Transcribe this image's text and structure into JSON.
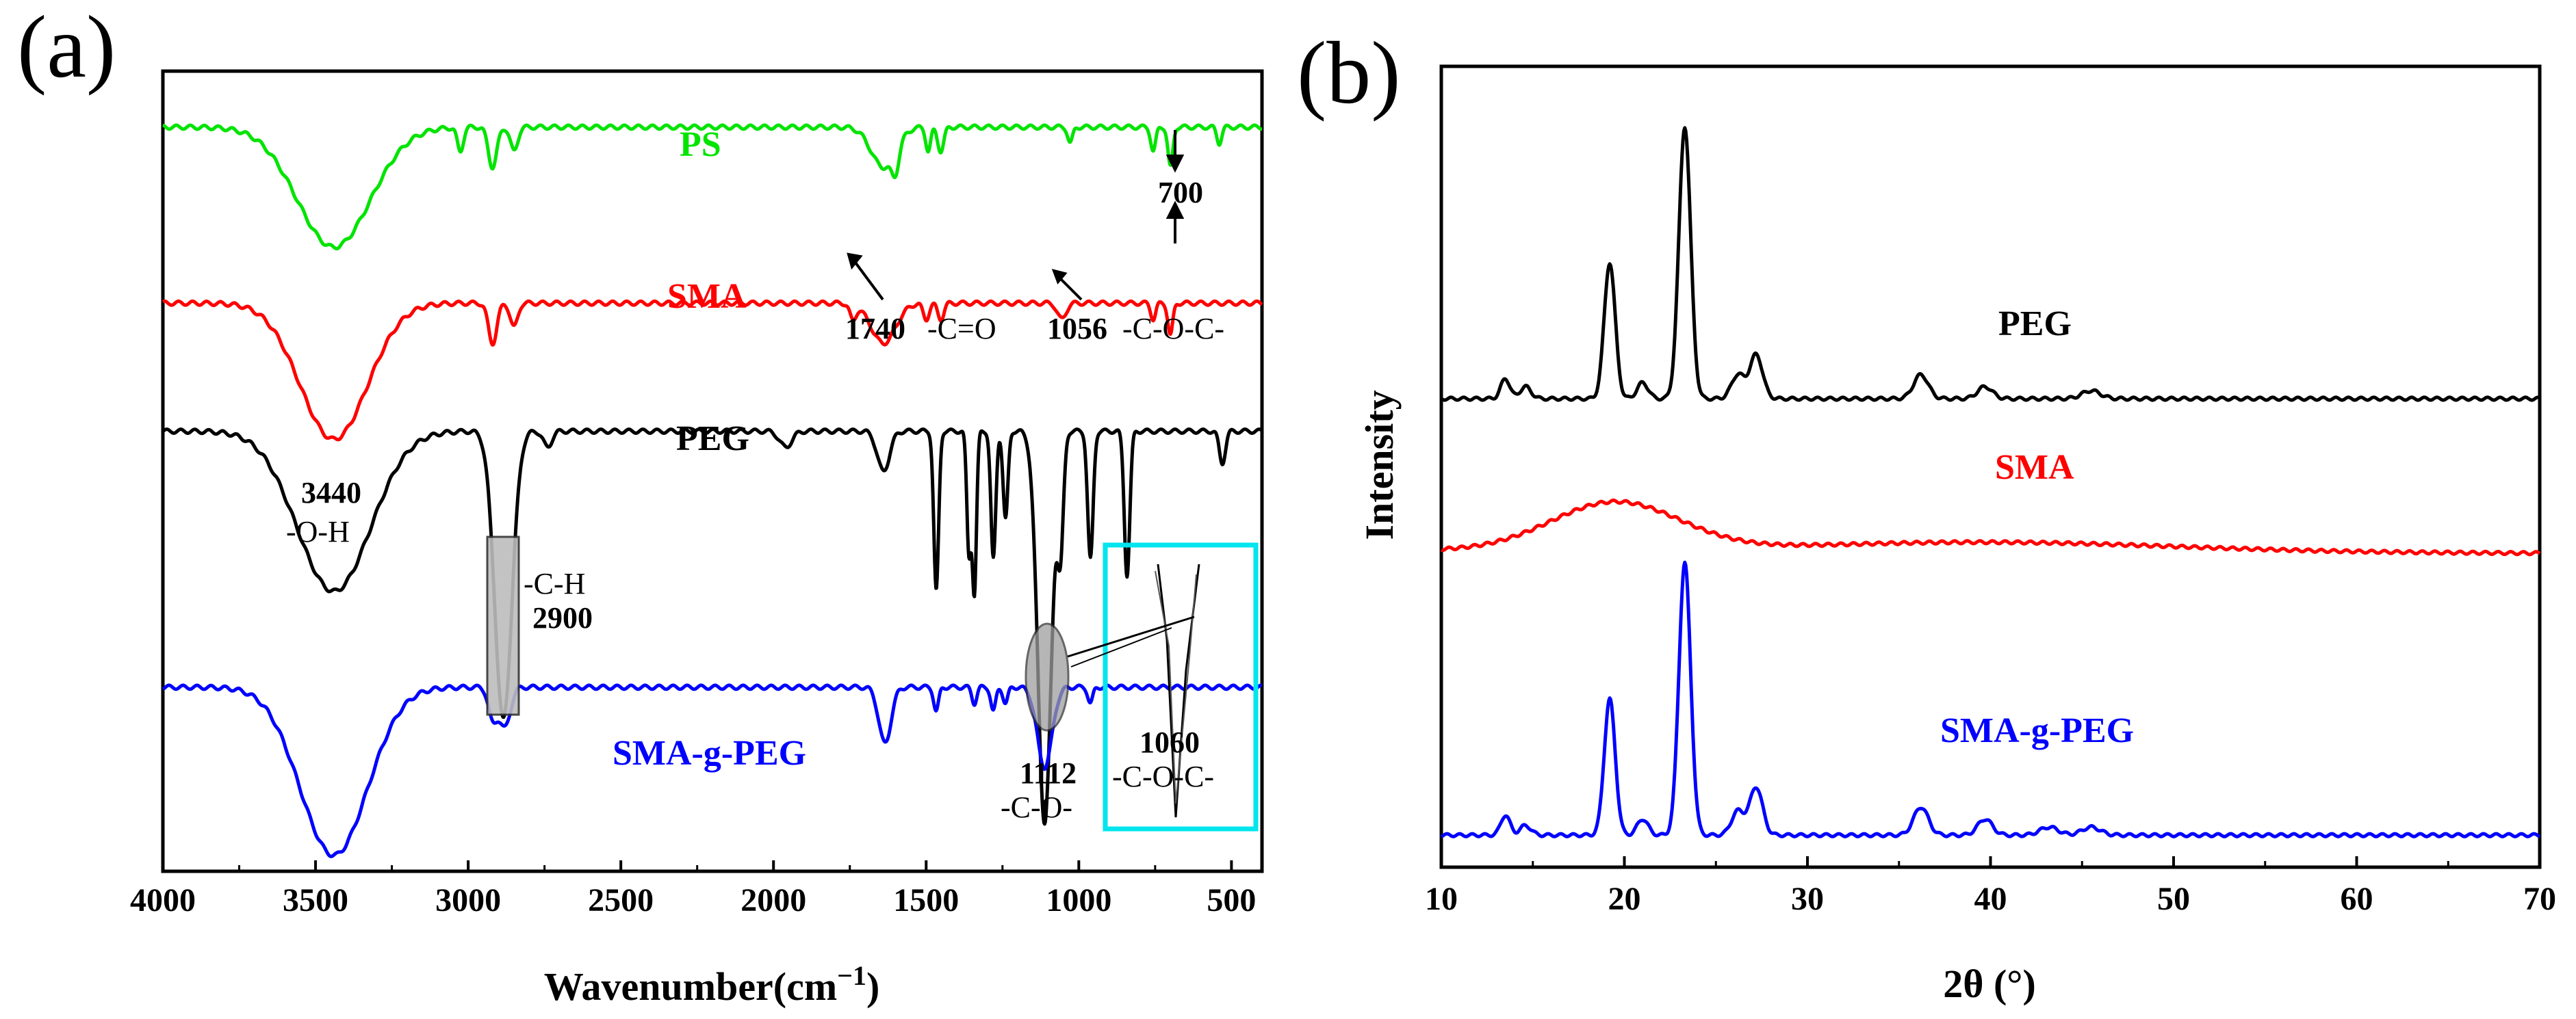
{
  "chart_data": [
    {
      "type": "line",
      "panel_label": "(a)",
      "title": "",
      "xlabel": "Wavenumber(cm",
      "xlabel_sup": "−1",
      "xlabel_close": ")",
      "ylabel": "",
      "xlim": [
        4000,
        400
      ],
      "x_ticks": [
        "4000",
        "3500",
        "3000",
        "2500",
        "2000",
        "1500",
        "1000",
        "500"
      ],
      "series": [
        {
          "name": "PS",
          "color": "#00e400",
          "baseline": 0.93,
          "bands": [
            [
              3440,
              0.15,
              120
            ],
            [
              3026,
              0.03,
              10
            ],
            [
              2920,
              0.05,
              14
            ],
            [
              2850,
              0.03,
              12
            ],
            [
              1601,
              0.03,
              12
            ],
            [
              1640,
              0.05,
              40
            ],
            [
              1493,
              0.03,
              8
            ],
            [
              1452,
              0.03,
              10
            ],
            [
              1028,
              0.02,
              8
            ],
            [
              756,
              0.03,
              8
            ],
            [
              700,
              0.05,
              8
            ],
            [
              540,
              0.02,
              8
            ]
          ]
        },
        {
          "name": "SMA",
          "color": "#ff0000",
          "baseline": 0.71,
          "bands": [
            [
              3440,
              0.17,
              110
            ],
            [
              2920,
              0.05,
              14
            ],
            [
              2850,
              0.03,
              12
            ],
            [
              1740,
              0.02,
              10
            ],
            [
              1640,
              0.05,
              40
            ],
            [
              1500,
              0.02,
              10
            ],
            [
              1452,
              0.02,
              10
            ],
            [
              1056,
              0.02,
              14
            ],
            [
              700,
              0.04,
              8
            ],
            [
              756,
              0.02,
              8
            ]
          ]
        },
        {
          "name": "PEG",
          "color": "#000000",
          "baseline": 0.55,
          "bands": [
            [
              3440,
              0.2,
              120
            ],
            [
              2885,
              0.36,
              28
            ],
            [
              2740,
              0.02,
              14
            ],
            [
              1960,
              0.02,
              20
            ],
            [
              1640,
              0.05,
              20
            ],
            [
              1467,
              0.2,
              8
            ],
            [
              1360,
              0.15,
              7
            ],
            [
              1342,
              0.2,
              7
            ],
            [
              1280,
              0.16,
              8
            ],
            [
              1240,
              0.11,
              8
            ],
            [
              1112,
              0.49,
              22
            ],
            [
              1060,
              0.14,
              10
            ],
            [
              962,
              0.16,
              9
            ],
            [
              842,
              0.18,
              9
            ],
            [
              530,
              0.04,
              10
            ]
          ]
        },
        {
          "name": "SMA-g-PEG",
          "color": "#0000ff",
          "baseline": 0.23,
          "bands": [
            [
              3440,
              0.21,
              110
            ],
            [
              2920,
              0.04,
              14
            ],
            [
              2880,
              0.05,
              18
            ],
            [
              1635,
              0.07,
              20
            ],
            [
              1467,
              0.03,
              8
            ],
            [
              1342,
              0.02,
              8
            ],
            [
              1280,
              0.03,
              8
            ],
            [
              1240,
              0.02,
              8
            ],
            [
              1112,
              0.1,
              24
            ],
            [
              962,
              0.02,
              8
            ]
          ]
        }
      ],
      "annotations": [
        {
          "id": "a700",
          "text": "700"
        },
        {
          "id": "a1740",
          "num": "1740",
          "text": "-C=O"
        },
        {
          "id": "a1056",
          "num": "1056",
          "text": "-C-O-C-"
        },
        {
          "id": "a3440",
          "num": "3440",
          "text": "-O-H"
        },
        {
          "id": "a2900",
          "num": "2900",
          "text": "-C-H"
        },
        {
          "id": "a1112",
          "num": "1112",
          "text": "-C-O-"
        },
        {
          "id": "a1060",
          "num": "1060",
          "text": "-C-O-C-"
        }
      ]
    },
    {
      "type": "line",
      "panel_label": "(b)",
      "title": "",
      "xlabel": "2θ (°)",
      "ylabel": "Intensity",
      "xlim": [
        10,
        70
      ],
      "x_ticks": [
        "10",
        "20",
        "30",
        "40",
        "50",
        "60",
        "70"
      ],
      "series": [
        {
          "name": "PEG",
          "color": "#000000",
          "baseline": 0.585,
          "peaks": [
            [
              13.5,
              0.025,
              0.25
            ],
            [
              14.6,
              0.015,
              0.3
            ],
            [
              19.2,
              0.17,
              0.3
            ],
            [
              21.0,
              0.02,
              0.3
            ],
            [
              23.3,
              0.34,
              0.32
            ],
            [
              26.2,
              0.03,
              0.35
            ],
            [
              27.2,
              0.055,
              0.35
            ],
            [
              36.2,
              0.03,
              0.4
            ],
            [
              39.7,
              0.015,
              0.4
            ],
            [
              45.5,
              0.01,
              0.5
            ]
          ]
        },
        {
          "name": "SMA",
          "color": "#ff0000",
          "baseline": 0.395,
          "hump": [
            19.5,
            0.06,
            3.5
          ],
          "tail": [
            -0.0012,
            0.012,
            40,
            10
          ]
        },
        {
          "name": "SMA-g-PEG",
          "color": "#0000ff",
          "baseline": 0.04,
          "peaks": [
            [
              13.5,
              0.025,
              0.25
            ],
            [
              14.6,
              0.012,
              0.3
            ],
            [
              19.2,
              0.17,
              0.3
            ],
            [
              21.0,
              0.02,
              0.3
            ],
            [
              23.3,
              0.34,
              0.32
            ],
            [
              26.2,
              0.03,
              0.35
            ],
            [
              27.2,
              0.06,
              0.35
            ],
            [
              36.2,
              0.035,
              0.4
            ],
            [
              39.7,
              0.02,
              0.4
            ],
            [
              43.2,
              0.01,
              0.5
            ],
            [
              45.5,
              0.01,
              0.5
            ]
          ]
        }
      ]
    }
  ]
}
